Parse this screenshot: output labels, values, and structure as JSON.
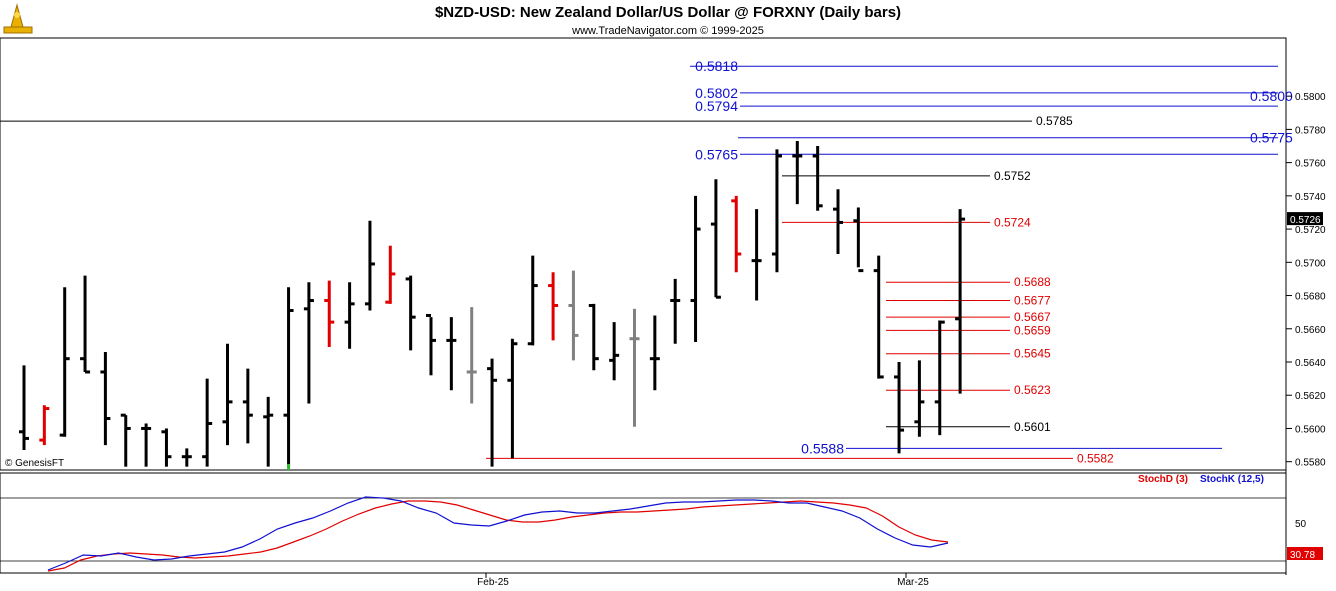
{
  "header": {
    "title": "$NZD-USD:  New Zealand Dollar/US Dollar @ FORXNY  (Daily bars)",
    "subtitle": "www.TradeNavigator.com © 1999-2025",
    "watermark": "© GenesisFT",
    "logo_icon": "trade-navigator-logo"
  },
  "chart_data": [
    {
      "type": "ohlc",
      "title": "$NZD-USD:  New Zealand Dollar/US Dollar @ FORXNY  (Daily bars)",
      "ylim": [
        0.5575,
        0.5835
      ],
      "y_ticks": [
        "0.5580",
        "0.5600",
        "0.5620",
        "0.5640",
        "0.5660",
        "0.5680",
        "0.5700",
        "0.5720",
        "0.5740",
        "0.5760",
        "0.5780",
        "0.5800"
      ],
      "x_ticks": [
        "Feb-25",
        "Mar-25"
      ],
      "last_price": "0.5726",
      "colors": {
        "up": "#000000",
        "highlight": "#e00000",
        "neutral": "#808080",
        "ref_blue": "#1010d0",
        "ref_red": "#e00000",
        "ref_black": "#000000",
        "last_price_bg": "#000000"
      },
      "bars": [
        {
          "h": 0.5638,
          "l": 0.5587,
          "o": 0.5598,
          "c": 0.5594,
          "color": "black"
        },
        {
          "h": 0.5614,
          "l": 0.559,
          "o": 0.5593,
          "c": 0.5612,
          "color": "red"
        },
        {
          "h": 0.5685,
          "l": 0.5595,
          "o": 0.5596,
          "c": 0.5642,
          "color": "black"
        },
        {
          "h": 0.5692,
          "l": 0.5634,
          "o": 0.5642,
          "c": 0.5634,
          "color": "black"
        },
        {
          "h": 0.5646,
          "l": 0.559,
          "o": 0.5634,
          "c": 0.5606,
          "color": "black"
        },
        {
          "h": 0.5608,
          "l": 0.5577,
          "o": 0.5608,
          "c": 0.56,
          "color": "black"
        },
        {
          "h": 0.5603,
          "l": 0.5577,
          "o": 0.56,
          "c": 0.56,
          "color": "black"
        },
        {
          "h": 0.56,
          "l": 0.5577,
          "o": 0.5598,
          "c": 0.5583,
          "color": "black"
        },
        {
          "h": 0.5588,
          "l": 0.5577,
          "o": 0.5583,
          "c": 0.5583,
          "color": "black"
        },
        {
          "h": 0.563,
          "l": 0.5577,
          "o": 0.5583,
          "c": 0.5603,
          "color": "black"
        },
        {
          "h": 0.5651,
          "l": 0.559,
          "o": 0.5604,
          "c": 0.5616,
          "color": "black"
        },
        {
          "h": 0.5636,
          "l": 0.5591,
          "o": 0.5616,
          "c": 0.5608,
          "color": "black"
        },
        {
          "h": 0.5619,
          "l": 0.5577,
          "o": 0.5607,
          "c": 0.5608,
          "color": "black"
        },
        {
          "h": 0.5685,
          "l": 0.5577,
          "o": 0.5608,
          "c": 0.5671,
          "color": "black"
        },
        {
          "h": 0.5688,
          "l": 0.5615,
          "o": 0.5672,
          "c": 0.5677,
          "color": "black"
        },
        {
          "h": 0.5689,
          "l": 0.5649,
          "o": 0.5677,
          "c": 0.5664,
          "color": "red"
        },
        {
          "h": 0.5688,
          "l": 0.5648,
          "o": 0.5664,
          "c": 0.5675,
          "color": "black"
        },
        {
          "h": 0.5725,
          "l": 0.5671,
          "o": 0.5675,
          "c": 0.5699,
          "color": "black"
        },
        {
          "h": 0.571,
          "l": 0.5675,
          "o": 0.5676,
          "c": 0.5693,
          "color": "red"
        },
        {
          "h": 0.5692,
          "l": 0.5647,
          "o": 0.569,
          "c": 0.5667,
          "color": "black"
        },
        {
          "h": 0.5667,
          "l": 0.5632,
          "o": 0.5668,
          "c": 0.5653,
          "color": "black"
        },
        {
          "h": 0.5667,
          "l": 0.5623,
          "o": 0.5653,
          "c": 0.5653,
          "color": "black"
        },
        {
          "h": 0.5673,
          "l": 0.5615,
          "o": 0.5634,
          "c": 0.5634,
          "color": "gray"
        },
        {
          "h": 0.5642,
          "l": 0.5577,
          "o": 0.5636,
          "c": 0.5629,
          "color": "black"
        },
        {
          "h": 0.5654,
          "l": 0.5582,
          "o": 0.5629,
          "c": 0.5651,
          "color": "black"
        },
        {
          "h": 0.5704,
          "l": 0.565,
          "o": 0.5651,
          "c": 0.5686,
          "color": "black"
        },
        {
          "h": 0.5694,
          "l": 0.5653,
          "o": 0.5686,
          "c": 0.5674,
          "color": "red"
        },
        {
          "h": 0.5695,
          "l": 0.5641,
          "o": 0.5674,
          "c": 0.5656,
          "color": "gray"
        },
        {
          "h": 0.5675,
          "l": 0.5635,
          "o": 0.5674,
          "c": 0.5642,
          "color": "black"
        },
        {
          "h": 0.5664,
          "l": 0.5629,
          "o": 0.5641,
          "c": 0.5644,
          "color": "black"
        },
        {
          "h": 0.5672,
          "l": 0.5601,
          "o": 0.5654,
          "c": 0.5654,
          "color": "gray"
        },
        {
          "h": 0.5668,
          "l": 0.5623,
          "o": 0.5642,
          "c": 0.5642,
          "color": "black"
        },
        {
          "h": 0.569,
          "l": 0.5651,
          "o": 0.5677,
          "c": 0.5677,
          "color": "black"
        },
        {
          "h": 0.574,
          "l": 0.5652,
          "o": 0.5677,
          "c": 0.572,
          "color": "black"
        },
        {
          "h": 0.575,
          "l": 0.5679,
          "o": 0.5723,
          "c": 0.5679,
          "color": "black"
        },
        {
          "h": 0.574,
          "l": 0.5694,
          "o": 0.5737,
          "c": 0.5705,
          "color": "red"
        },
        {
          "h": 0.5732,
          "l": 0.5677,
          "o": 0.5701,
          "c": 0.5701,
          "color": "black"
        },
        {
          "h": 0.5768,
          "l": 0.5694,
          "o": 0.5705,
          "c": 0.5764,
          "color": "black"
        },
        {
          "h": 0.5773,
          "l": 0.5735,
          "o": 0.5764,
          "c": 0.5764,
          "color": "black"
        },
        {
          "h": 0.577,
          "l": 0.5731,
          "o": 0.5764,
          "c": 0.5734,
          "color": "black"
        },
        {
          "h": 0.5744,
          "l": 0.5705,
          "o": 0.5732,
          "c": 0.5724,
          "color": "black"
        },
        {
          "h": 0.5733,
          "l": 0.5697,
          "o": 0.5725,
          "c": 0.5695,
          "color": "black"
        },
        {
          "h": 0.5704,
          "l": 0.563,
          "o": 0.5695,
          "c": 0.5631,
          "color": "black"
        },
        {
          "h": 0.564,
          "l": 0.5585,
          "o": 0.5631,
          "c": 0.5599,
          "color": "black"
        },
        {
          "h": 0.5641,
          "l": 0.5595,
          "o": 0.5604,
          "c": 0.5616,
          "color": "black"
        },
        {
          "h": 0.5665,
          "l": 0.5596,
          "o": 0.5616,
          "c": 0.5664,
          "color": "black"
        },
        {
          "h": 0.5732,
          "l": 0.5621,
          "o": 0.5666,
          "c": 0.5726,
          "color": "black"
        }
      ],
      "reference_levels": [
        {
          "value": "0.5818",
          "color": "blue",
          "size": "large",
          "partial": true
        },
        {
          "value": "0.5802",
          "color": "blue",
          "size": "large"
        },
        {
          "value": "0.5800",
          "color": "blue",
          "size": "large"
        },
        {
          "value": "0.5794",
          "color": "blue",
          "size": "large"
        },
        {
          "value": "0.5785",
          "color": "black",
          "size": "small"
        },
        {
          "value": "0.5775",
          "color": "blue",
          "size": "large"
        },
        {
          "value": "0.5765",
          "color": "blue",
          "size": "large"
        },
        {
          "value": "0.5752",
          "color": "black",
          "size": "small"
        },
        {
          "value": "0.5724",
          "color": "red",
          "size": "small"
        },
        {
          "value": "0.5688",
          "color": "red",
          "size": "small"
        },
        {
          "value": "0.5677",
          "color": "red",
          "size": "small"
        },
        {
          "value": "0.5667",
          "color": "red",
          "size": "small"
        },
        {
          "value": "0.5659",
          "color": "red",
          "size": "small"
        },
        {
          "value": "0.5645",
          "color": "red",
          "size": "small"
        },
        {
          "value": "0.5623",
          "color": "red",
          "size": "small"
        },
        {
          "value": "0.5601",
          "color": "black",
          "size": "small"
        },
        {
          "value": "0.5588",
          "color": "blue",
          "size": "large"
        },
        {
          "value": "0.5582",
          "color": "red",
          "size": "small"
        }
      ]
    },
    {
      "type": "line",
      "legend": [
        "StochD (3)",
        "StochK (12,5)"
      ],
      "y_ticks": [
        "50"
      ],
      "ylim": [
        0,
        100
      ],
      "last_value": "30.78",
      "series": [
        {
          "name": "StochD (3)",
          "color": "#e00000",
          "values": [
            2,
            5,
            13,
            17,
            19,
            20,
            19,
            18,
            16,
            15,
            16,
            17,
            19,
            21,
            25,
            31,
            37,
            44,
            52,
            59,
            65,
            69,
            72,
            72,
            71,
            68,
            63,
            58,
            53,
            51,
            51,
            53,
            56,
            58,
            60,
            61,
            61,
            62,
            63,
            64,
            66,
            67,
            68,
            69,
            70,
            71,
            72,
            71,
            70,
            68,
            65,
            57,
            46,
            38,
            33,
            31
          ]
        },
        {
          "name": "StochK (12,5)",
          "color": "#1010d0",
          "values": [
            3,
            10,
            18,
            17,
            20,
            16,
            13,
            14,
            17,
            19,
            21,
            26,
            34,
            44,
            50,
            55,
            62,
            70,
            76,
            75,
            72,
            65,
            60,
            50,
            48,
            47,
            52,
            58,
            61,
            62,
            60,
            60,
            62,
            64,
            67,
            70,
            71,
            71,
            72,
            73,
            73,
            72,
            70,
            70,
            66,
            62,
            55,
            44,
            35,
            28,
            26,
            30
          ]
        }
      ]
    }
  ]
}
